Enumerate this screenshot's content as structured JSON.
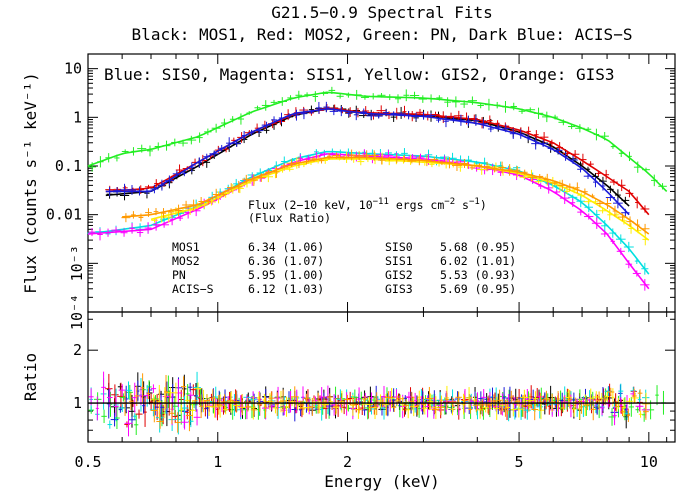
{
  "chart_data": [
    {
      "type": "scatter",
      "panel": "spectrum",
      "title": "G21.5−0.9 Spectral Fits",
      "subtitle": "Black: MOS1, Red: MOS2, Green: PN, Dark Blue: ACIS−S",
      "annotation_top": "Blue: SIS0, Magenta: SIS1, Yellow: GIS2, Orange: GIS3",
      "xlabel": "Energy (keV)",
      "ylabel": "Flux (counts s⁻¹ keV⁻¹)",
      "x_scale": "log",
      "y_scale": "log",
      "xlim": [
        0.5,
        11.5
      ],
      "ylim": [
        0.0001,
        20
      ],
      "x_tick_labels": [
        "0.5",
        "1",
        "2",
        "5",
        "10"
      ],
      "y_tick_labels": [
        "10⁻⁴",
        "10⁻³",
        "0.01",
        "0.1",
        "1",
        "10"
      ],
      "series": [
        {
          "name": "MOS1",
          "color": "#000000",
          "x": [
            0.55,
            0.7,
            0.9,
            1.2,
            1.5,
            1.8,
            2.2,
            3,
            4,
            5,
            6,
            7,
            8,
            9
          ],
          "y": [
            0.025,
            0.03,
            0.1,
            0.45,
            1.1,
            1.5,
            1.2,
            1.1,
            0.85,
            0.5,
            0.25,
            0.1,
            0.04,
            0.015
          ]
        },
        {
          "name": "MOS2",
          "color": "#e00000",
          "x": [
            0.55,
            0.7,
            0.9,
            1.2,
            1.5,
            1.8,
            2.2,
            3,
            4,
            5,
            6,
            7,
            8,
            9,
            10
          ],
          "y": [
            0.03,
            0.035,
            0.12,
            0.5,
            1.15,
            1.55,
            1.25,
            1.15,
            0.9,
            0.55,
            0.3,
            0.13,
            0.06,
            0.03,
            0.01
          ]
        },
        {
          "name": "PN",
          "color": "#22ee22",
          "x": [
            0.5,
            0.6,
            0.7,
            0.9,
            1.2,
            1.5,
            1.8,
            2.2,
            3,
            4,
            5,
            6,
            7,
            8,
            9,
            10,
            11
          ],
          "y": [
            0.1,
            0.18,
            0.22,
            0.4,
            1.3,
            2.5,
            3.3,
            2.7,
            2.5,
            2.0,
            1.5,
            1.0,
            0.6,
            0.35,
            0.15,
            0.07,
            0.03
          ]
        },
        {
          "name": "ACIS-S",
          "color": "#1a1ad8",
          "x": [
            0.55,
            0.7,
            0.9,
            1.2,
            1.5,
            1.8,
            2.2,
            3,
            4,
            5,
            6,
            7,
            8,
            9
          ],
          "y": [
            0.03,
            0.03,
            0.12,
            0.5,
            1.2,
            1.5,
            1.2,
            1.05,
            0.75,
            0.45,
            0.22,
            0.09,
            0.03,
            0.01
          ]
        },
        {
          "name": "SIS0",
          "color": "#00e0e0",
          "x": [
            0.5,
            0.7,
            0.9,
            1.2,
            1.5,
            1.8,
            2.2,
            3,
            4,
            5,
            6,
            7,
            8,
            9,
            10
          ],
          "y": [
            0.004,
            0.006,
            0.015,
            0.06,
            0.14,
            0.2,
            0.18,
            0.16,
            0.12,
            0.08,
            0.04,
            0.018,
            0.006,
            0.002,
            0.0006
          ]
        },
        {
          "name": "SIS1",
          "color": "#ff00ff",
          "x": [
            0.5,
            0.7,
            0.9,
            1.2,
            1.5,
            1.8,
            2.2,
            3,
            4,
            5,
            6,
            7,
            8,
            9,
            10
          ],
          "y": [
            0.004,
            0.005,
            0.013,
            0.05,
            0.12,
            0.18,
            0.16,
            0.14,
            0.1,
            0.065,
            0.03,
            0.012,
            0.004,
            0.001,
            0.0003
          ]
        },
        {
          "name": "GIS2",
          "color": "#ffee00",
          "x": [
            0.7,
            0.9,
            1.2,
            1.5,
            1.8,
            2.2,
            3,
            4,
            5,
            6,
            7,
            8,
            9,
            10
          ],
          "y": [
            0.008,
            0.014,
            0.05,
            0.1,
            0.14,
            0.14,
            0.12,
            0.1,
            0.07,
            0.045,
            0.025,
            0.012,
            0.006,
            0.003
          ]
        },
        {
          "name": "GIS3",
          "color": "#ff9900",
          "x": [
            0.6,
            0.7,
            0.9,
            1.2,
            1.5,
            1.8,
            2.2,
            3,
            4,
            5,
            6,
            7,
            8,
            9,
            10
          ],
          "y": [
            0.009,
            0.01,
            0.016,
            0.055,
            0.11,
            0.15,
            0.15,
            0.13,
            0.1,
            0.075,
            0.05,
            0.03,
            0.016,
            0.008,
            0.004
          ]
        }
      ],
      "flux_table": {
        "header_line1": "Flux (2−10 keV, 10",
        "header_exp1": "−11",
        "header_mid": " ergs cm",
        "header_exp2": "−2",
        "header_mid2": " s",
        "header_exp3": "−1",
        "header_end": ")",
        "header_line2": "(Flux Ratio)",
        "left": [
          {
            "label": "MOS1",
            "value": "6.34 (1.06)"
          },
          {
            "label": "MOS2",
            "value": "6.36 (1.07)"
          },
          {
            "label": "PN",
            "value": "5.95 (1.00)"
          },
          {
            "label": "ACIS−S",
            "value": "6.12 (1.03)"
          }
        ],
        "right": [
          {
            "label": "SIS0",
            "value": "5.68 (0.95)"
          },
          {
            "label": "SIS1",
            "value": "6.02 (1.01)"
          },
          {
            "label": "GIS2",
            "value": "5.53 (0.93)"
          },
          {
            "label": "GIS3",
            "value": "5.69 (0.95)"
          }
        ]
      }
    },
    {
      "type": "scatter",
      "panel": "ratio",
      "ylabel": "Ratio",
      "xlabel": "Energy (keV)",
      "x_scale": "log",
      "y_scale": "log",
      "xlim": [
        0.5,
        11.5
      ],
      "ylim": [
        0.6,
        3.3
      ],
      "y_tick_labels": [
        "1",
        "2"
      ],
      "reference_value": 1.0
    }
  ]
}
